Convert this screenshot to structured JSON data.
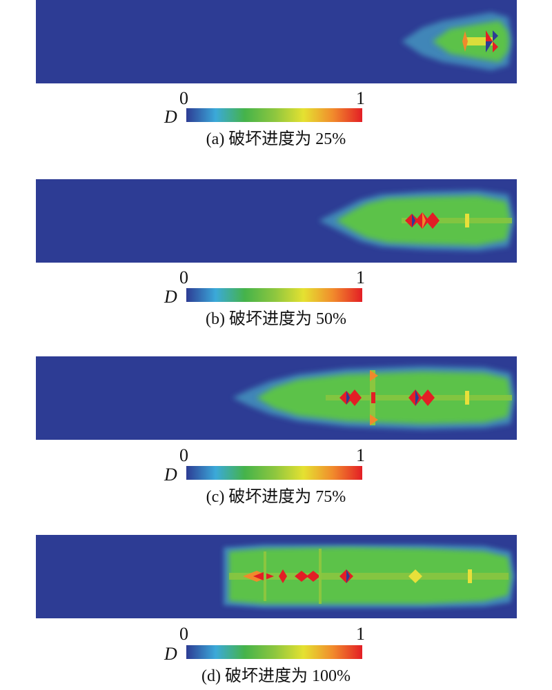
{
  "colormap": [
    "#2d3c94",
    "#3ba9d9",
    "#45b34a",
    "#8cc63f",
    "#e5e131",
    "#f18b2c",
    "#e31e25"
  ],
  "colors": {
    "background_field": "#2d3c94",
    "halo": "#4aa6c8",
    "damage_zone": "#5cc24a",
    "yellow": "#e8e03a",
    "orange": "#f08a2c",
    "red": "#e31e25"
  },
  "colorbar": {
    "variable": "D",
    "min_label": "0",
    "max_label": "1"
  },
  "chart_data": [
    {
      "type": "heatmap",
      "caption": "(a) 破坏进度为 25%",
      "variable": "D",
      "range": [
        0,
        1
      ],
      "failure_progress_percent": 25
    },
    {
      "type": "heatmap",
      "caption": "(b) 破坏进度为 50%",
      "variable": "D",
      "range": [
        0,
        1
      ],
      "failure_progress_percent": 50
    },
    {
      "type": "heatmap",
      "caption": "(c) 破坏进度为 75%",
      "variable": "D",
      "range": [
        0,
        1
      ],
      "failure_progress_percent": 75
    },
    {
      "type": "heatmap",
      "caption": "(d) 破坏进度为 100%",
      "variable": "D",
      "range": [
        0,
        1
      ],
      "failure_progress_percent": 100
    }
  ]
}
